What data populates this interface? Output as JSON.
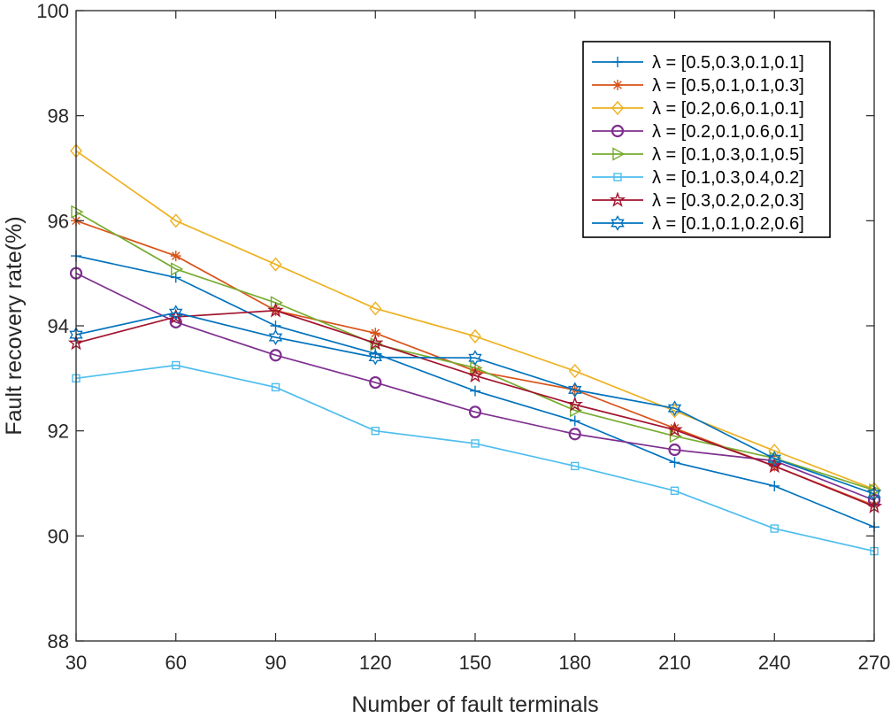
{
  "chart_data": {
    "type": "line",
    "title": "",
    "xlabel": "Number of fault terminals",
    "ylabel": "Fault recovery rate(%)",
    "x": [
      30,
      60,
      90,
      120,
      150,
      180,
      210,
      240,
      270
    ],
    "xticks": [
      "30",
      "60",
      "90",
      "120",
      "150",
      "180",
      "210",
      "240",
      "270"
    ],
    "yticks": [
      "88",
      "90",
      "92",
      "94",
      "96",
      "98",
      "100"
    ],
    "xlim": [
      30,
      270
    ],
    "ylim": [
      88,
      100
    ],
    "grid": false,
    "legend_position": "top-right",
    "series": [
      {
        "name": "λ = [0.5,0.3,0.1,0.1]",
        "color": "#0072BD",
        "marker": "plus",
        "values": [
          95.33,
          94.92,
          94.0,
          93.47,
          92.76,
          92.19,
          91.4,
          90.95,
          90.17
        ]
      },
      {
        "name": "λ = [0.5,0.1,0.1,0.3]",
        "color": "#D95319",
        "marker": "asterisk",
        "values": [
          96.0,
          95.33,
          94.29,
          93.86,
          93.14,
          92.78,
          92.05,
          91.33,
          90.58
        ]
      },
      {
        "name": "λ = [0.2,0.6,0.1,0.1]",
        "color": "#EDB120",
        "marker": "diamond",
        "values": [
          97.33,
          96.0,
          95.17,
          94.33,
          93.8,
          93.14,
          92.38,
          91.62,
          90.89
        ]
      },
      {
        "name": "λ = [0.2,0.1,0.6,0.1]",
        "color": "#7E2F8E",
        "marker": "circle",
        "values": [
          95.0,
          94.07,
          93.44,
          92.92,
          92.36,
          91.94,
          91.64,
          91.43,
          90.68
        ]
      },
      {
        "name": "λ = [0.1,0.3,0.1,0.5]",
        "color": "#77AC30",
        "marker": "triangle-right",
        "values": [
          96.17,
          95.08,
          94.44,
          93.65,
          93.2,
          92.39,
          91.9,
          91.48,
          90.87
        ]
      },
      {
        "name": "λ = [0.1,0.3,0.4,0.2]",
        "color": "#4DBEEE",
        "marker": "square",
        "values": [
          93.0,
          93.25,
          92.83,
          92.0,
          91.76,
          91.33,
          90.86,
          90.14,
          89.71
        ]
      },
      {
        "name": "λ = [0.3,0.2,0.2,0.3]",
        "color": "#A2142F",
        "marker": "pentagram",
        "values": [
          93.67,
          94.17,
          94.29,
          93.67,
          93.05,
          92.5,
          92.02,
          91.33,
          90.56
        ]
      },
      {
        "name": "λ = [0.1,0.1,0.2,0.6]",
        "color": "#0072BD",
        "marker": "hexagram",
        "values": [
          93.83,
          94.25,
          93.78,
          93.4,
          93.39,
          92.78,
          92.43,
          91.47,
          90.8
        ]
      }
    ]
  }
}
